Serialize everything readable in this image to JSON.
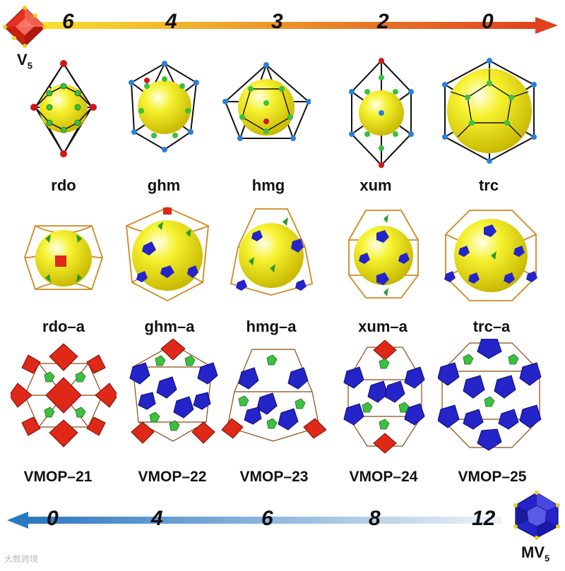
{
  "top_scale": {
    "ticks": [
      "6",
      "4",
      "3",
      "2",
      "0"
    ],
    "start_color": "#f8e030",
    "end_color": "#e04020"
  },
  "bottom_scale": {
    "ticks": [
      "0",
      "4",
      "6",
      "8",
      "12"
    ],
    "start_color": "#2a78c0",
    "end_color": "#e8eef8"
  },
  "v5_label": {
    "text": "V",
    "sub": "5"
  },
  "mv5_label": {
    "text": "MV",
    "sub": "5"
  },
  "row1": [
    "rdo",
    "ghm",
    "hmg",
    "xum",
    "trc"
  ],
  "row2": [
    "rdo–a",
    "ghm–a",
    "hmg–a",
    "xum–a",
    "trc–a"
  ],
  "row3": [
    "VMOP–21",
    "VMOP–22",
    "VMOP–23",
    "VMOP–24",
    "VMOP–25"
  ],
  "watermark": "大数跨境",
  "colors": {
    "sphere": "#f2ee20",
    "node_green": "#3cc040",
    "node_blue": "#2a80d8",
    "node_red": "#d01818",
    "poly_red": "#e02818",
    "poly_blue": "#2424c8",
    "frame_orange": "#d08820"
  }
}
